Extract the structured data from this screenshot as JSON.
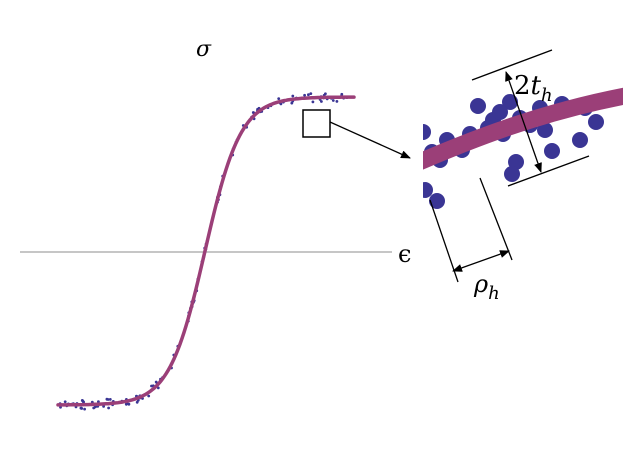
{
  "labels": {
    "y_axis": "σ",
    "x_axis": "ϵ",
    "thickness_coef": "2",
    "thickness_var": "t",
    "thickness_sub": "h",
    "radius_var": "ρ",
    "radius_sub": "h"
  },
  "colors": {
    "curve": "#9b3f78",
    "dots": "#3a3594",
    "axis": "#8c8c8c",
    "lines": "#000000",
    "background": "#ffffff"
  }
}
